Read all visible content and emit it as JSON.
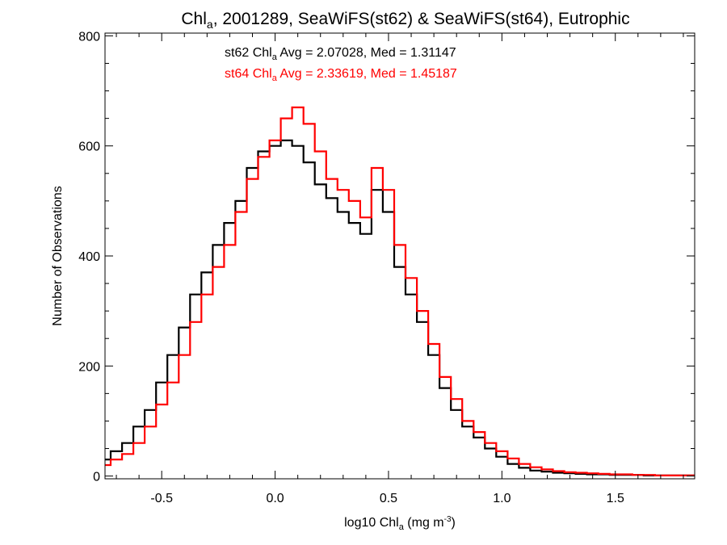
{
  "chart_data": {
    "type": "line",
    "title": {
      "pre": "Chl",
      "sub": "a",
      "post": ", 2001289, SeaWiFS(st62) & SeaWiFS(st64), Eutrophic"
    },
    "xlabel": {
      "pre": "log10 Chl",
      "sub": "a",
      "mid": " (mg m",
      "sup": "-3",
      "post": ")"
    },
    "ylabel": "Number of Observations",
    "xlim": [
      -0.75,
      1.85
    ],
    "ylim": [
      -5,
      805
    ],
    "x_ticks": [
      {
        "v": -0.5,
        "label": "-0.5"
      },
      {
        "v": 0.0,
        "label": "0.0"
      },
      {
        "v": 0.5,
        "label": "0.5"
      },
      {
        "v": 1.0,
        "label": "1.0"
      },
      {
        "v": 1.5,
        "label": "1.5"
      }
    ],
    "y_ticks": [
      {
        "v": 0,
        "label": "0"
      },
      {
        "v": 200,
        "label": "200"
      },
      {
        "v": 400,
        "label": "400"
      },
      {
        "v": 600,
        "label": "600"
      },
      {
        "v": 800,
        "label": "800"
      }
    ],
    "grid": false,
    "step": true,
    "annotations": [
      {
        "pre": "st62 Chl",
        "sub": "a",
        "post": " Avg = 2.07028, Med = 1.31147",
        "color": "#000000"
      },
      {
        "pre": "st64 Chl",
        "sub": "a",
        "post": " Avg = 2.33619, Med = 1.45187",
        "color": "#ff0000"
      }
    ],
    "x": [
      -0.75,
      -0.7,
      -0.65,
      -0.6,
      -0.55,
      -0.5,
      -0.45,
      -0.4,
      -0.35,
      -0.3,
      -0.25,
      -0.2,
      -0.15,
      -0.1,
      -0.05,
      0.0,
      0.05,
      0.1,
      0.15,
      0.2,
      0.25,
      0.3,
      0.35,
      0.4,
      0.45,
      0.5,
      0.55,
      0.6,
      0.65,
      0.7,
      0.75,
      0.8,
      0.85,
      0.9,
      0.95,
      1.0,
      1.05,
      1.1,
      1.15,
      1.2,
      1.25,
      1.3,
      1.35,
      1.4,
      1.45,
      1.5,
      1.55,
      1.6,
      1.65,
      1.7,
      1.75,
      1.8,
      1.85
    ],
    "series": [
      {
        "color": "#000000",
        "values": [
          30,
          45,
          60,
          90,
          120,
          170,
          220,
          270,
          330,
          370,
          420,
          460,
          500,
          560,
          590,
          600,
          610,
          600,
          570,
          530,
          505,
          480,
          460,
          440,
          520,
          480,
          380,
          330,
          280,
          220,
          160,
          120,
          90,
          70,
          50,
          35,
          22,
          15,
          10,
          8,
          6,
          5,
          4,
          3,
          3,
          2,
          2,
          2,
          1,
          1,
          1,
          1,
          1
        ]
      },
      {
        "color": "#ff0000",
        "values": [
          20,
          30,
          40,
          60,
          90,
          130,
          170,
          220,
          280,
          330,
          380,
          420,
          480,
          540,
          580,
          610,
          650,
          670,
          640,
          590,
          540,
          520,
          500,
          470,
          560,
          520,
          420,
          360,
          300,
          240,
          180,
          140,
          100,
          80,
          60,
          45,
          32,
          22,
          16,
          12,
          9,
          7,
          6,
          5,
          4,
          3,
          3,
          2,
          2,
          1,
          1,
          1,
          1
        ]
      }
    ]
  }
}
